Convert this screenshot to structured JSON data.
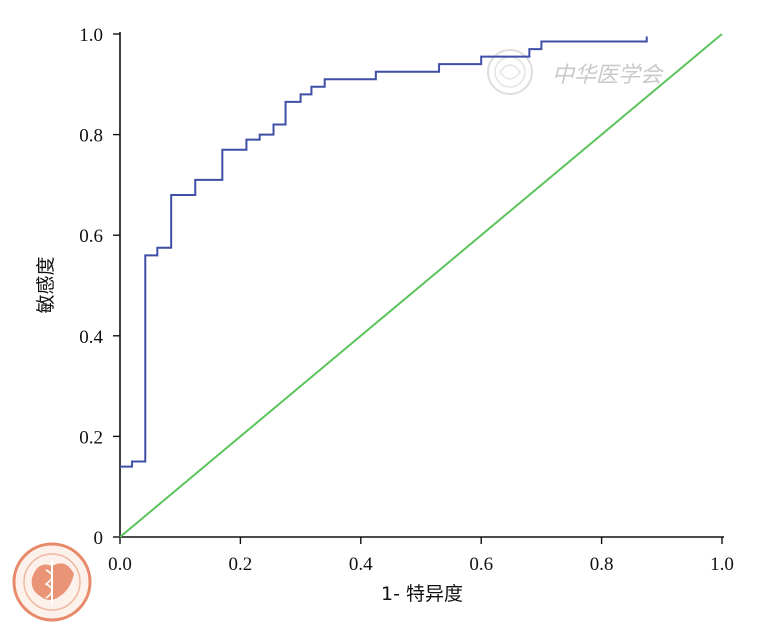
{
  "chart_data": {
    "type": "line",
    "xlabel": "1- 特异度",
    "ylabel": "敏感度",
    "xlim": [
      0,
      1
    ],
    "ylim": [
      0,
      1
    ],
    "x_ticks": [
      {
        "value": 0,
        "label": "0.0"
      },
      {
        "value": 0.2,
        "label": "0.2"
      },
      {
        "value": 0.4,
        "label": "0.4"
      },
      {
        "value": 0.6,
        "label": "0.6"
      },
      {
        "value": 0.8,
        "label": "0.8"
      },
      {
        "value": 1,
        "label": "1.0"
      }
    ],
    "y_ticks": [
      {
        "value": 0,
        "label": "0"
      },
      {
        "value": 0.2,
        "label": "0.2"
      },
      {
        "value": 0.4,
        "label": "0.4"
      },
      {
        "value": 0.6,
        "label": "0.6"
      },
      {
        "value": 0.8,
        "label": "0.8"
      },
      {
        "value": 1,
        "label": "1.0"
      }
    ],
    "grid": false,
    "series": [
      {
        "color": "#3f4fa8",
        "step": true,
        "points": [
          [
            0,
            0.14
          ],
          [
            0.02,
            0.14
          ],
          [
            0.02,
            0.15
          ],
          [
            0.042,
            0.15
          ],
          [
            0.042,
            0.56
          ],
          [
            0.062,
            0.56
          ],
          [
            0.062,
            0.575
          ],
          [
            0.085,
            0.575
          ],
          [
            0.085,
            0.68
          ],
          [
            0.125,
            0.68
          ],
          [
            0.125,
            0.71
          ],
          [
            0.17,
            0.71
          ],
          [
            0.17,
            0.77
          ],
          [
            0.21,
            0.77
          ],
          [
            0.21,
            0.79
          ],
          [
            0.232,
            0.79
          ],
          [
            0.232,
            0.8
          ],
          [
            0.255,
            0.8
          ],
          [
            0.255,
            0.82
          ],
          [
            0.275,
            0.82
          ],
          [
            0.275,
            0.865
          ],
          [
            0.3,
            0.865
          ],
          [
            0.3,
            0.88
          ],
          [
            0.318,
            0.88
          ],
          [
            0.318,
            0.895
          ],
          [
            0.34,
            0.895
          ],
          [
            0.34,
            0.91
          ],
          [
            0.425,
            0.91
          ],
          [
            0.425,
            0.925
          ],
          [
            0.53,
            0.925
          ],
          [
            0.53,
            0.94
          ],
          [
            0.6,
            0.94
          ],
          [
            0.6,
            0.955
          ],
          [
            0.68,
            0.955
          ],
          [
            0.68,
            0.97
          ],
          [
            0.7,
            0.97
          ],
          [
            0.7,
            0.985
          ],
          [
            0.875,
            0.985
          ],
          [
            0.875,
            0.995
          ]
        ]
      },
      {
        "color": "#5cc45c",
        "step": false,
        "points": [
          [
            0,
            0
          ],
          [
            1,
            1
          ]
        ]
      }
    ]
  },
  "watermark": {
    "text": "中华医学会",
    "seal_color": "#e88a6a"
  }
}
